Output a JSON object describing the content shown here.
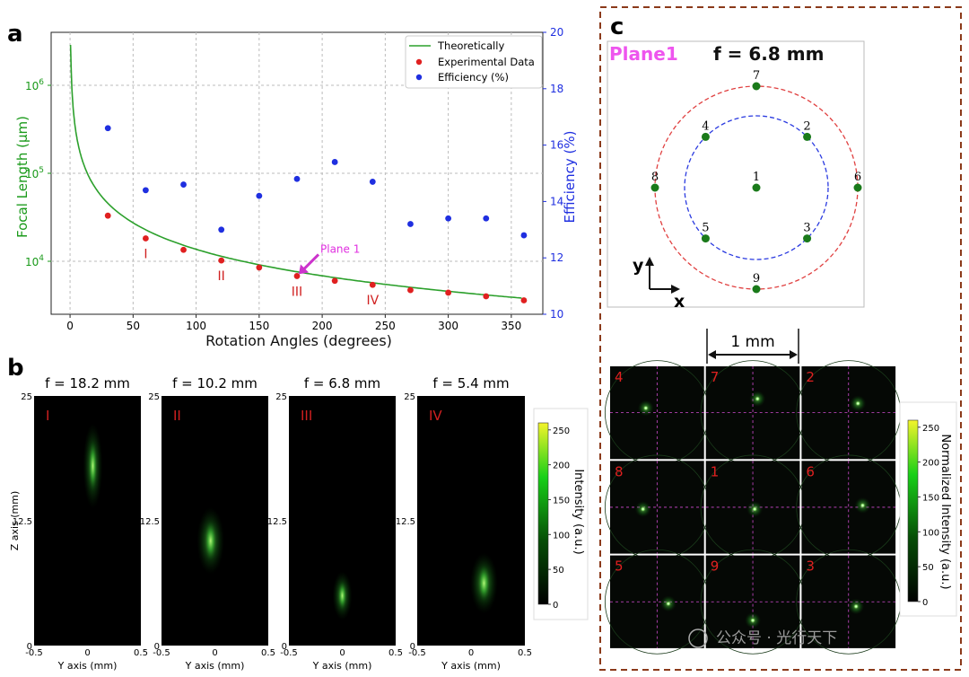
{
  "panel_labels": {
    "a": "a",
    "b": "b",
    "c": "c"
  },
  "chart_data": [
    {
      "type": "scatter",
      "panel": "a",
      "xlabel": "Rotation Angles (degrees)",
      "ylabel": "Focal Length (μm)",
      "y2label": "Efficiency (%)",
      "xlim": [
        -15,
        375
      ],
      "ylim": [
        2500,
        4000000
      ],
      "yscale": "log",
      "y2lim": [
        10,
        20
      ],
      "xticks": [
        0,
        50,
        100,
        150,
        200,
        250,
        300,
        350
      ],
      "yticks": [
        {
          "v": 10000,
          "label": "10",
          "exp": "4"
        },
        {
          "v": 100000,
          "label": "10",
          "exp": "5"
        },
        {
          "v": 1000000,
          "label": "10",
          "exp": "6"
        }
      ],
      "y2ticks": [
        10,
        12,
        14,
        16,
        18,
        20
      ],
      "grid": true,
      "legend_position": "top-right",
      "series": [
        {
          "name": "Theoretically",
          "kind": "line",
          "color": "#2ca02c"
        },
        {
          "name": "Experimental Data",
          "kind": "scatter",
          "color": "#e02020",
          "x": [
            30,
            60,
            90,
            120,
            150,
            180,
            210,
            240,
            270,
            300,
            330,
            360
          ],
          "y": [
            33000,
            18200,
            13500,
            10200,
            8500,
            6800,
            6000,
            5400,
            4700,
            4400,
            4000,
            3600
          ]
        },
        {
          "name": "Efficiency (%)",
          "kind": "scatter",
          "axis": "right",
          "color": "#1f2fe0",
          "x": [
            30,
            60,
            90,
            120,
            150,
            180,
            210,
            240,
            270,
            300,
            330,
            360
          ],
          "y": [
            16.6,
            14.4,
            14.6,
            13.0,
            14.2,
            14.8,
            15.4,
            14.7,
            13.2,
            13.4,
            13.4,
            12.8
          ]
        }
      ],
      "point_labels": [
        {
          "x": 60,
          "text": "I"
        },
        {
          "x": 120,
          "text": "II"
        },
        {
          "x": 180,
          "text": "III"
        },
        {
          "x": 240,
          "text": "IV"
        }
      ],
      "annotation": {
        "text": "Plane 1",
        "x": 180
      }
    },
    {
      "type": "heatmap",
      "panel": "b",
      "colorbar_label": "Intensity (a.u.)",
      "colorbar_ticks": [
        0,
        50,
        100,
        150,
        200,
        250
      ],
      "xlabel": "Y axis (mm)",
      "ylabel": "Z axis (mm)",
      "xticks": [
        "-0.5",
        "0",
        "0.5"
      ],
      "yticks": [
        "0",
        "12.5",
        "25"
      ],
      "subplots": [
        {
          "title": "f = 18.2 mm",
          "tag": "I"
        },
        {
          "title": "f = 10.2 mm",
          "tag": "II"
        },
        {
          "title": "f = 6.8 mm",
          "tag": "III"
        },
        {
          "title": "f = 5.4 mm",
          "tag": "IV"
        }
      ]
    },
    {
      "type": "diagram",
      "panel": "c",
      "plane_label": "Plane1",
      "focal_label": "f = 6.8 mm",
      "points": [
        "1",
        "2",
        "3",
        "4",
        "5",
        "6",
        "7",
        "8",
        "9"
      ],
      "axis_labels": {
        "y": "y",
        "x": "x"
      },
      "scale_bar": "1 mm",
      "grid_tags": [
        "4",
        "7",
        "2",
        "8",
        "1",
        "6",
        "5",
        "9",
        "3"
      ],
      "colorbar_label": "Normalized Intensity (a.u.)",
      "colorbar_ticks": [
        0,
        50,
        100,
        150,
        200,
        250
      ]
    }
  ],
  "watermark": "公众号 · 光行天下"
}
